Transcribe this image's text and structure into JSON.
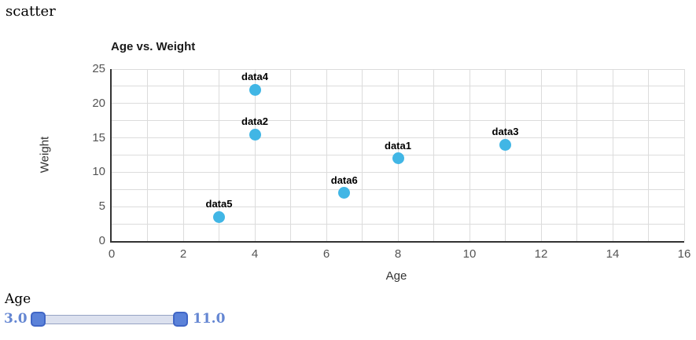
{
  "page": {
    "heading": "scatter"
  },
  "chart_data": {
    "type": "scatter",
    "title": "Age vs. Weight",
    "xlabel": "Age",
    "ylabel": "Weight",
    "xlim": [
      0,
      16
    ],
    "ylim": [
      0,
      25
    ],
    "x_ticks": [
      0,
      2,
      4,
      6,
      8,
      10,
      12,
      14,
      16
    ],
    "y_ticks": [
      0,
      5,
      10,
      15,
      20,
      25
    ],
    "x_grid_step": 1,
    "y_grid_step": 2.5,
    "grid": true,
    "point_color": "#41b6e5",
    "points": [
      {
        "label": "data1",
        "x": 8,
        "y": 12
      },
      {
        "label": "data2",
        "x": 4,
        "y": 15.5
      },
      {
        "label": "data3",
        "x": 11,
        "y": 14
      },
      {
        "label": "data4",
        "x": 4,
        "y": 22
      },
      {
        "label": "data5",
        "x": 3,
        "y": 3.5
      },
      {
        "label": "data6",
        "x": 6.5,
        "y": 7
      }
    ]
  },
  "slider": {
    "label": "Age",
    "min_value": "3.0",
    "max_value": "11.0",
    "accent_color": "#5b82d9",
    "text_color": "#6486d2"
  }
}
